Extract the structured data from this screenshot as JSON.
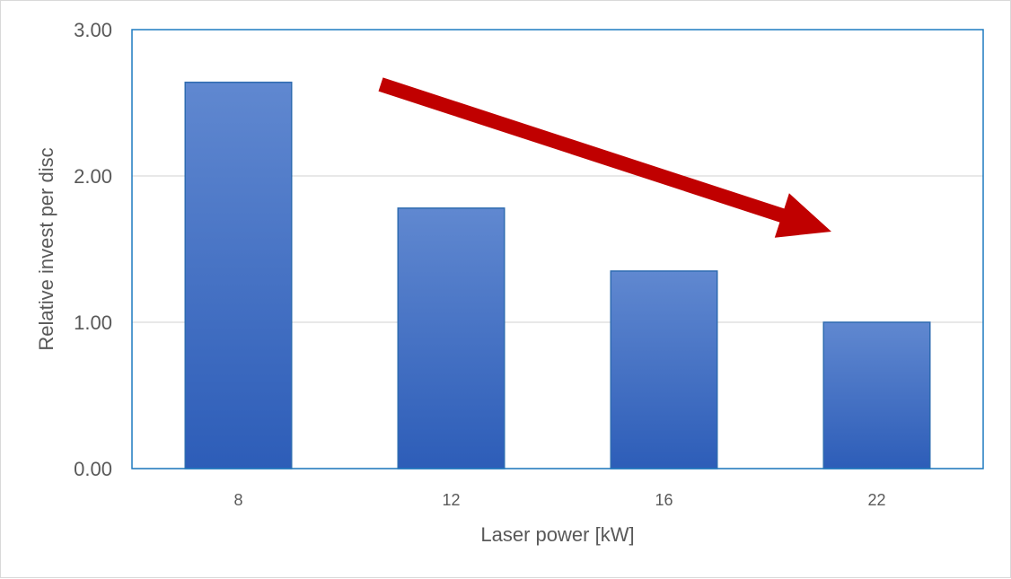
{
  "chart_data": {
    "type": "bar",
    "categories": [
      "8",
      "12",
      "16",
      "22"
    ],
    "values": [
      2.64,
      1.78,
      1.35,
      1.0
    ],
    "xlabel": "Laser power [kW]",
    "ylabel": "Relative invest per disc",
    "ylim": [
      0,
      3
    ],
    "yticks": [
      "0.00",
      "1.00",
      "2.00",
      "3.00"
    ],
    "grid": true,
    "legend": "none",
    "annotation": "downward-trend-arrow",
    "colors": {
      "bar_top": "#6088D0",
      "bar_bottom": "#2D5DB8",
      "bar_edge": "#2E6BB0",
      "plot_border": "#1F7BC0",
      "grid": "#D9D9D9",
      "arrow": "#C00000"
    }
  }
}
